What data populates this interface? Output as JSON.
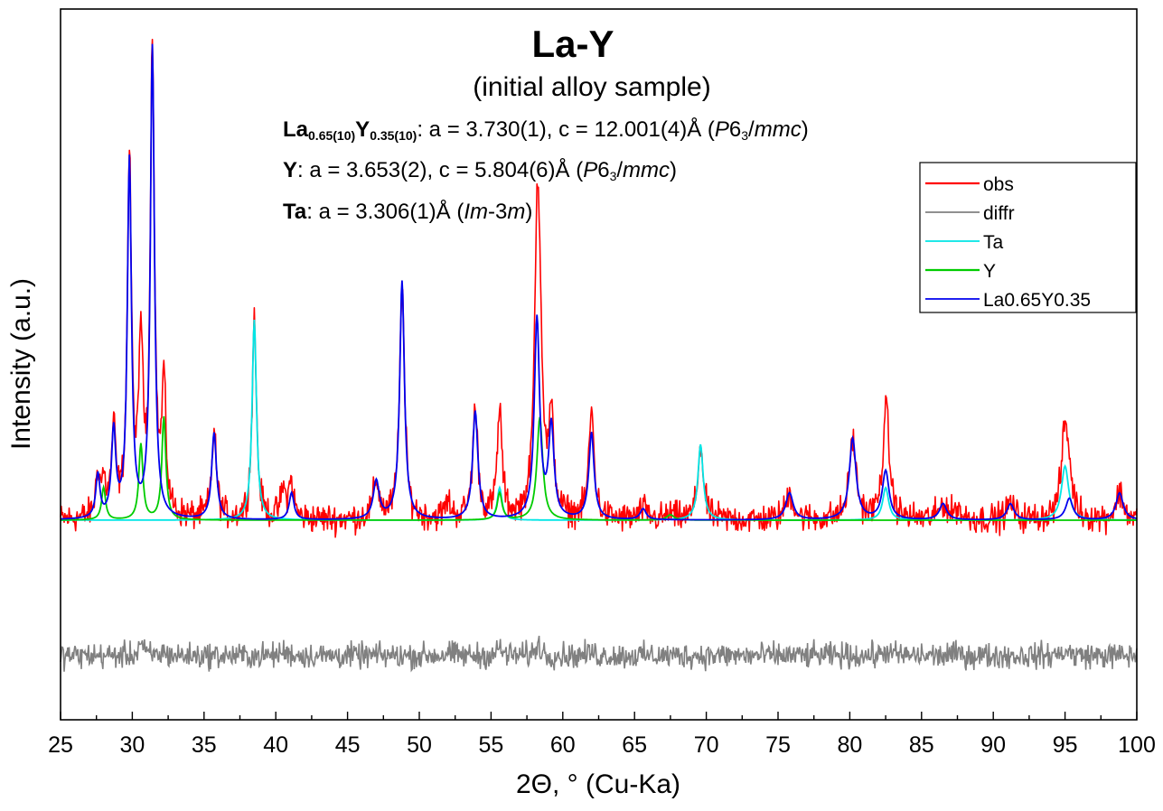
{
  "chart_data": {
    "type": "line",
    "title": "La-Y",
    "subtitle": "(initial alloy sample)",
    "xlabel": "2Θ, ° (Cu-Ka)",
    "ylabel": "Intensity (a.u.)",
    "xlim": [
      25,
      100
    ],
    "x_ticks": [
      25,
      30,
      35,
      40,
      45,
      50,
      55,
      60,
      65,
      70,
      75,
      80,
      85,
      90,
      95,
      100
    ],
    "y_ticks_shown": false,
    "grid": false,
    "legend_position": "top-right",
    "cell_params": [
      {
        "parts": [
          {
            "t": "La",
            "b": true
          },
          {
            "t": "0.65(10)",
            "b": true,
            "sub": true
          },
          {
            "t": "Y",
            "b": true
          },
          {
            "t": "0.35(10)",
            "b": true,
            "sub": true
          },
          {
            "t": ": a = 3.730(1), c = 12.001(4)Å ("
          },
          {
            "t": "P",
            "i": true
          },
          {
            "t": "6"
          },
          {
            "t": "3",
            "sub": true
          },
          {
            "t": "/"
          },
          {
            "t": "mmc",
            "i": true
          },
          {
            "t": ")"
          }
        ]
      },
      {
        "parts": [
          {
            "t": "Y",
            "b": true
          },
          {
            "t": ": a = 3.653(2), c = 5.804(6)Å ("
          },
          {
            "t": "P",
            "i": true
          },
          {
            "t": "6"
          },
          {
            "t": "3",
            "sub": true
          },
          {
            "t": "/"
          },
          {
            "t": "mmc",
            "i": true
          },
          {
            "t": ")"
          }
        ]
      },
      {
        "parts": [
          {
            "t": "Ta",
            "b": true
          },
          {
            "t": ": a = 3.306(1)Å ("
          },
          {
            "t": "Im",
            "i": true
          },
          {
            "t": "-3"
          },
          {
            "t": "m",
            "i": true
          },
          {
            "t": ")"
          }
        ]
      }
    ],
    "background_level": 0.0,
    "series": [
      {
        "name": "obs",
        "color": "#ff0000",
        "noise_amplitude": 0.04
      },
      {
        "name": "diffr",
        "color": "#808080",
        "offset": -0.25,
        "noise_amplitude": 0.035
      },
      {
        "name": "Ta",
        "color": "#00e5e5",
        "peaks": [
          [
            38.5,
            0.37,
            0.18
          ],
          [
            55.6,
            0.06,
            0.2
          ],
          [
            69.6,
            0.14,
            0.22
          ],
          [
            82.5,
            0.06,
            0.25
          ],
          [
            95.0,
            0.1,
            0.3
          ]
        ]
      },
      {
        "name": "Y",
        "color": "#00cc00",
        "peaks": [
          [
            28.0,
            0.06,
            0.17
          ],
          [
            30.6,
            0.14,
            0.17
          ],
          [
            32.2,
            0.19,
            0.17
          ],
          [
            55.6,
            0.05,
            0.2
          ],
          [
            58.4,
            0.19,
            0.24
          ],
          [
            67.5,
            0.01,
            0.3
          ]
        ]
      },
      {
        "name": "La0.65Y0.35",
        "color": "#0000ee",
        "peaks": [
          [
            27.6,
            0.08,
            0.17
          ],
          [
            28.7,
            0.16,
            0.18
          ],
          [
            29.8,
            0.66,
            0.17
          ],
          [
            31.4,
            0.87,
            0.17
          ],
          [
            35.7,
            0.16,
            0.2
          ],
          [
            41.1,
            0.05,
            0.2
          ],
          [
            47.0,
            0.07,
            0.25
          ],
          [
            48.8,
            0.44,
            0.2
          ],
          [
            53.9,
            0.2,
            0.22
          ],
          [
            58.2,
            0.37,
            0.22
          ],
          [
            59.2,
            0.17,
            0.22
          ],
          [
            62.0,
            0.16,
            0.22
          ],
          [
            65.6,
            0.02,
            0.25
          ],
          [
            75.8,
            0.05,
            0.3
          ],
          [
            80.2,
            0.15,
            0.28
          ],
          [
            82.5,
            0.09,
            0.28
          ],
          [
            86.5,
            0.03,
            0.3
          ],
          [
            91.2,
            0.03,
            0.3
          ],
          [
            95.3,
            0.04,
            0.3
          ],
          [
            98.8,
            0.05,
            0.3
          ]
        ]
      }
    ],
    "obs_extra_peaks": [
      [
        30.6,
        0.18,
        0.16
      ],
      [
        32.2,
        0.05,
        0.16
      ],
      [
        40.5,
        0.05,
        0.2
      ],
      [
        41.0,
        0.02,
        0.2
      ],
      [
        52.0,
        0.03,
        0.25
      ],
      [
        55.6,
        0.09,
        0.2
      ],
      [
        58.3,
        0.14,
        0.22
      ],
      [
        62.0,
        0.04,
        0.22
      ],
      [
        82.6,
        0.06,
        0.25
      ],
      [
        87.5,
        0.02,
        0.3
      ],
      [
        95.0,
        0.06,
        0.3
      ]
    ]
  }
}
